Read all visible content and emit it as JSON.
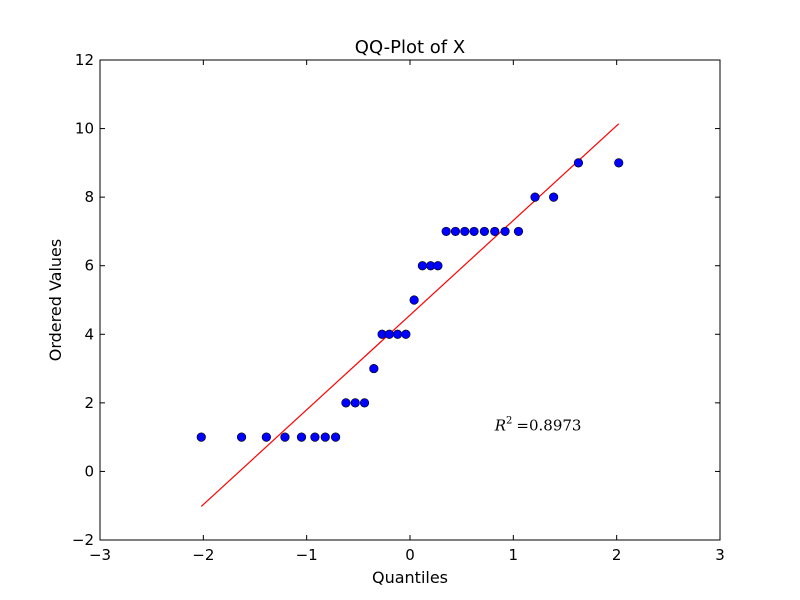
{
  "chart_data": {
    "type": "scatter",
    "title": "QQ-Plot of X",
    "xlabel": "Quantiles",
    "ylabel": "Ordered Values",
    "xlim": [
      -3,
      3
    ],
    "ylim": [
      -2,
      12
    ],
    "xticks": [
      -3,
      -2,
      -1,
      0,
      1,
      2,
      3
    ],
    "yticks": [
      -2,
      0,
      2,
      4,
      6,
      8,
      10,
      12
    ],
    "grid": false,
    "marker_color": "#0000ff",
    "line_color": "#ff0000",
    "series": [
      {
        "kind": "points",
        "x": [
          -2.02,
          -1.63,
          -1.39,
          -1.21,
          -1.05,
          -0.92,
          -0.82,
          -0.72,
          -0.62,
          -0.53,
          -0.44,
          -0.35,
          -0.27,
          -0.2,
          -0.12,
          -0.04,
          0.04,
          0.12,
          0.2,
          0.27,
          0.35,
          0.44,
          0.53,
          0.62,
          0.72,
          0.82,
          0.92,
          1.05,
          1.21,
          1.39,
          1.63,
          2.02
        ],
        "y": [
          1,
          1,
          1,
          1,
          1,
          1,
          1,
          1,
          2,
          2,
          2,
          3,
          4,
          4,
          4,
          4,
          5,
          6,
          6,
          6,
          7,
          7,
          7,
          7,
          7,
          7,
          7,
          7,
          8,
          8,
          9,
          9
        ]
      },
      {
        "kind": "fit-line",
        "x": [
          -2.02,
          2.02
        ],
        "y": [
          -1.02,
          10.14
        ]
      }
    ],
    "annotation": {
      "base": "R",
      "sup": "2",
      "text": "=0.8973",
      "x": 0.82,
      "y": 1.2
    }
  }
}
